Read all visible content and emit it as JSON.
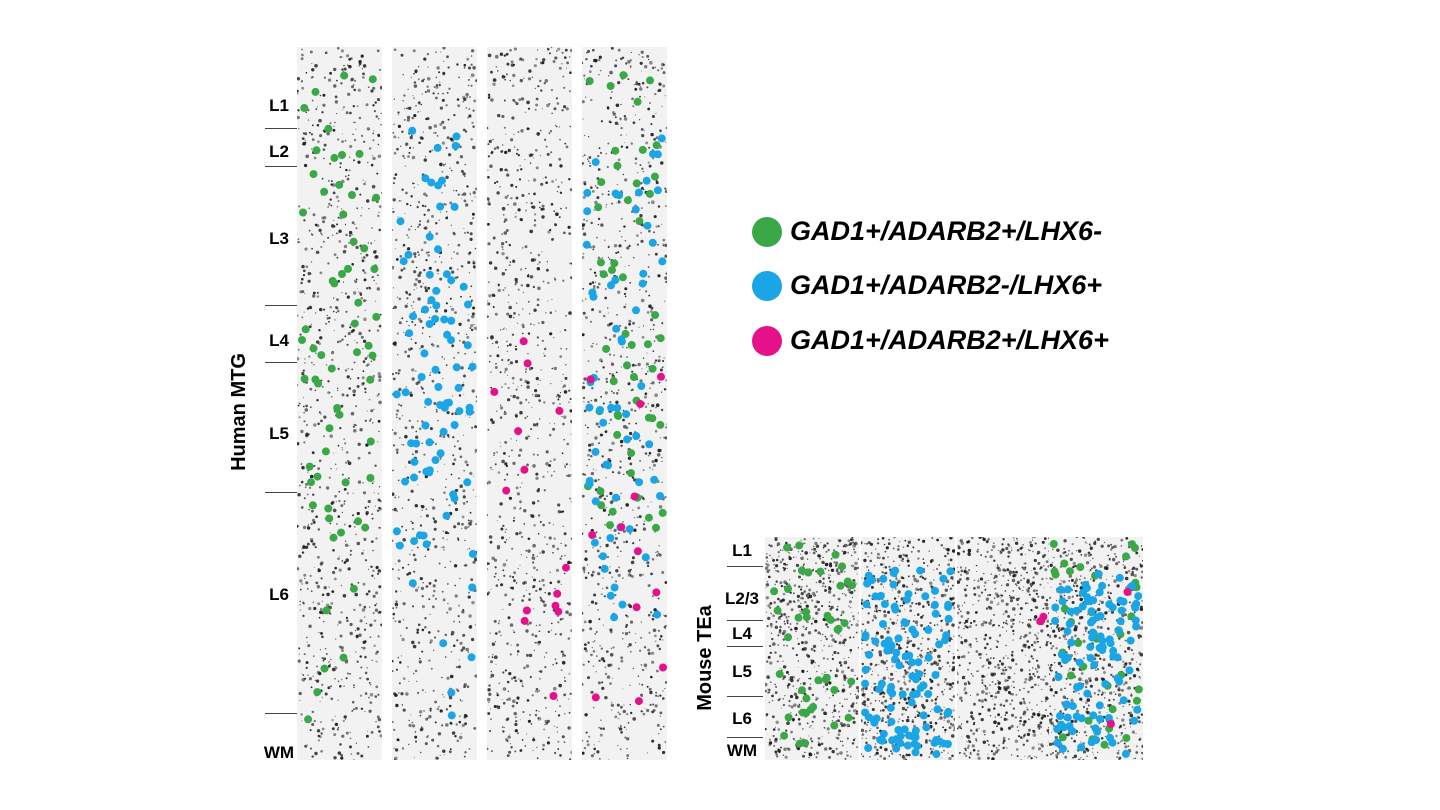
{
  "colors": {
    "green": "#3aa847",
    "blue": "#1aa6e6",
    "magenta": "#e6118a",
    "tissue": "#f2f2f2",
    "speck": "#1a1a1a"
  },
  "human": {
    "title": "Human MTG",
    "layers": [
      "L1",
      "L2",
      "L3",
      "L4",
      "L5",
      "L6",
      "WM"
    ]
  },
  "mouse": {
    "title": "Mouse TEa",
    "layers": [
      "L1",
      "L2/3",
      "L4",
      "L5",
      "L6",
      "WM"
    ]
  },
  "legend": [
    {
      "label": "GAD1+/ADARB2+/LHX6-",
      "color": "#3aa847"
    },
    {
      "label": "GAD1+/ADARB2-/LHX6+",
      "color": "#1aa6e6"
    },
    {
      "label": "GAD1+/ADARB2+/LHX6+",
      "color": "#e6118a"
    }
  ]
}
